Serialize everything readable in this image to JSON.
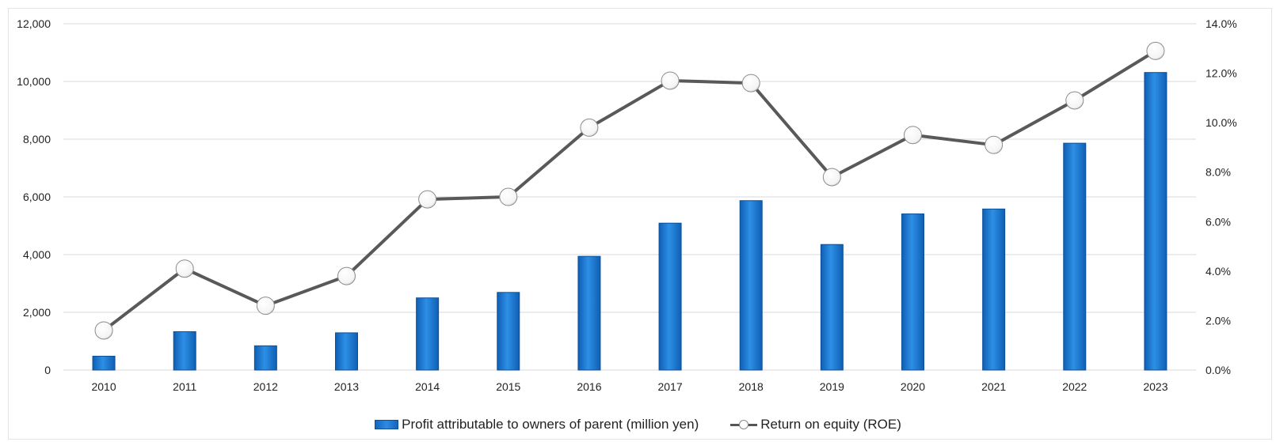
{
  "chart_data": {
    "type": "bar",
    "categories": [
      "2010",
      "2011",
      "2012",
      "2013",
      "2014",
      "2015",
      "2016",
      "2017",
      "2018",
      "2019",
      "2020",
      "2021",
      "2022",
      "2023"
    ],
    "series": [
      {
        "name": "Profit attributable to owners of parent (million yen)",
        "type": "bar",
        "axis": "left",
        "values": [
          480,
          1330,
          840,
          1290,
          2500,
          2690,
          3940,
          5090,
          5870,
          4350,
          5410,
          5580,
          7860,
          10310
        ]
      },
      {
        "name": "Return on equity (ROE)",
        "type": "line",
        "axis": "right",
        "values": [
          1.6,
          4.1,
          2.6,
          3.8,
          6.9,
          7.0,
          9.8,
          11.7,
          11.6,
          7.8,
          9.5,
          9.1,
          10.9,
          12.9
        ]
      }
    ],
    "y_left": {
      "ylim": [
        0,
        12000
      ],
      "ticks": [
        "0",
        "2,000",
        "4,000",
        "6,000",
        "8,000",
        "10,000",
        "12,000"
      ]
    },
    "y_right": {
      "ylim": [
        0,
        14
      ],
      "ticks": [
        "0.0%",
        "2.0%",
        "4.0%",
        "6.0%",
        "8.0%",
        "10.0%",
        "12.0%",
        "14.0%"
      ]
    },
    "grid": true,
    "legend_position": "bottom",
    "colors": {
      "bar": "#1570c8",
      "bar_edge": "#0d4f9a",
      "line": "#595959",
      "marker_fill": "#ffffff",
      "grid": "#d9d9d9"
    }
  },
  "legend": {
    "bar_label": "Profit attributable to owners of parent (million yen)",
    "line_label": "Return on equity (ROE)"
  }
}
